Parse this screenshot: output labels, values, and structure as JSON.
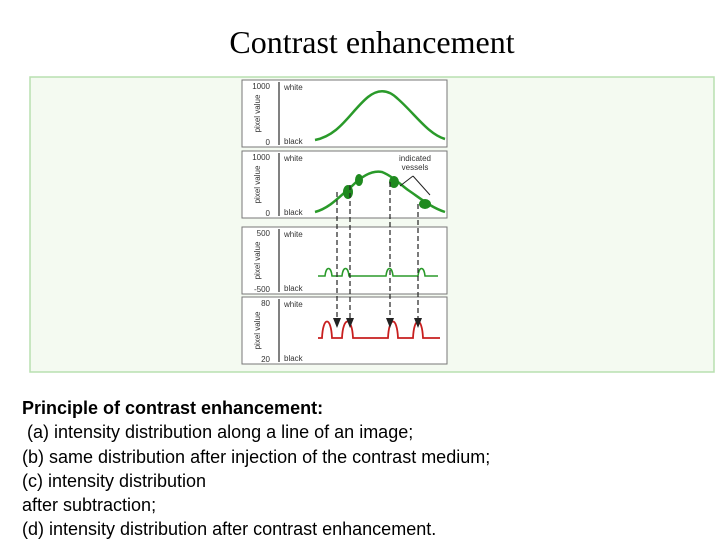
{
  "header": {
    "title": "Contrast enhancement"
  },
  "diagram": {
    "panels": [
      {
        "top": "1000",
        "bottom": "0",
        "axis": "pixel value",
        "white": "white",
        "black": "black"
      },
      {
        "top": "1000",
        "bottom": "0",
        "axis": "pixel value",
        "white": "white",
        "black": "black"
      },
      {
        "top": "500",
        "bottom": "-500",
        "axis": "pixel value",
        "white": "white",
        "black": "black"
      },
      {
        "top": "80",
        "bottom": "20",
        "axis": "pixel value",
        "white": "white",
        "black": "black"
      }
    ],
    "annotation": [
      "indicated",
      "vessels"
    ]
  },
  "caption": {
    "heading": "Principle of contrast enhancement:",
    "lines": [
      " (a) intensity distribution along a line of an image;",
      "(b) same distribution after injection of the contrast medium;",
      "(c) intensity distribution",
      "after subtraction;",
      "(d) intensity distribution after contrast enhancement."
    ]
  }
}
